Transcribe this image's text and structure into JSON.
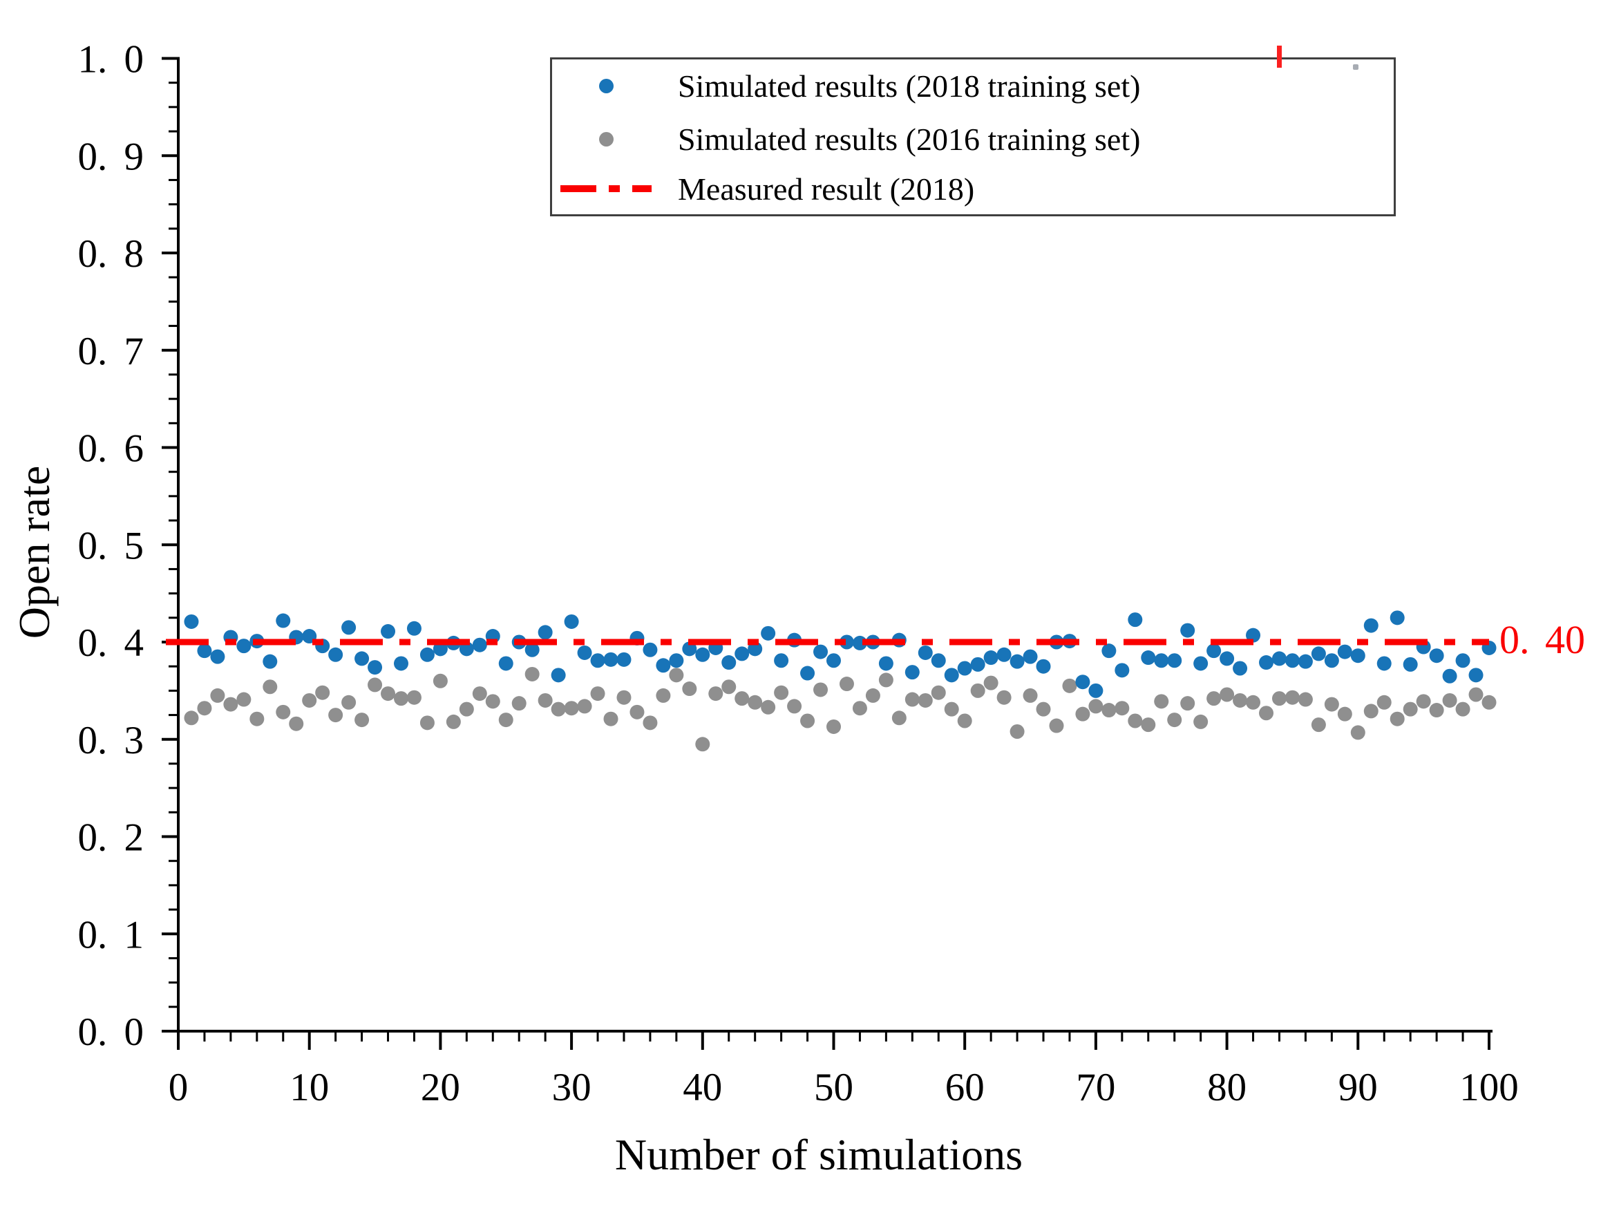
{
  "chart_data": {
    "type": "scatter",
    "title": "",
    "xlabel": "Number of simulations",
    "ylabel": "Open rate",
    "xlim": [
      0,
      100
    ],
    "ylim": [
      0.0,
      1.0
    ],
    "grid": "off",
    "legend_position": "inside-top-center",
    "x_tick_labels": [
      "0",
      "10",
      "20",
      "30",
      "40",
      "50",
      "60",
      "70",
      "80",
      "90",
      "100"
    ],
    "x_major_ticks": [
      0,
      10,
      20,
      30,
      40,
      50,
      60,
      70,
      80,
      90,
      100
    ],
    "x_minor_step": 2,
    "y_tick_labels": [
      "0. 0",
      "0. 1",
      "0. 2",
      "0. 3",
      "0. 4",
      "0. 5",
      "0. 6",
      "0. 7",
      "0. 8",
      "0. 9",
      "1. 0"
    ],
    "y_major_ticks": [
      0.0,
      0.1,
      0.2,
      0.3,
      0.4,
      0.5,
      0.6,
      0.7,
      0.8,
      0.9,
      1.0
    ],
    "y_minor_step": 0.025,
    "x": [
      1,
      2,
      3,
      4,
      5,
      6,
      7,
      8,
      9,
      10,
      11,
      12,
      13,
      14,
      15,
      16,
      17,
      18,
      19,
      20,
      21,
      22,
      23,
      24,
      25,
      26,
      27,
      28,
      29,
      30,
      31,
      32,
      33,
      34,
      35,
      36,
      37,
      38,
      39,
      40,
      41,
      42,
      43,
      44,
      45,
      46,
      47,
      48,
      49,
      50,
      51,
      52,
      53,
      54,
      55,
      56,
      57,
      58,
      59,
      60,
      61,
      62,
      63,
      64,
      65,
      66,
      67,
      68,
      69,
      70,
      71,
      72,
      73,
      74,
      75,
      76,
      77,
      78,
      79,
      80,
      81,
      82,
      83,
      84,
      85,
      86,
      87,
      88,
      89,
      90,
      91,
      92,
      93,
      94,
      95,
      96,
      97,
      98,
      99,
      100
    ],
    "series": [
      {
        "name": "Simulated results (2018 training set)",
        "color": "#1874b8",
        "marker": "circle",
        "values": [
          0.421,
          0.391,
          0.385,
          0.405,
          0.396,
          0.401,
          0.38,
          0.422,
          0.405,
          0.406,
          0.396,
          0.387,
          0.415,
          0.383,
          0.374,
          0.411,
          0.378,
          0.414,
          0.387,
          0.393,
          0.399,
          0.393,
          0.397,
          0.406,
          0.378,
          0.4,
          0.392,
          0.41,
          0.366,
          0.421,
          0.389,
          0.381,
          0.382,
          0.382,
          0.404,
          0.392,
          0.376,
          0.381,
          0.393,
          0.387,
          0.394,
          0.379,
          0.388,
          0.393,
          0.409,
          0.381,
          0.402,
          0.368,
          0.39,
          0.381,
          0.4,
          0.399,
          0.4,
          0.378,
          0.402,
          0.369,
          0.389,
          0.381,
          0.366,
          0.373,
          0.377,
          0.384,
          0.387,
          0.38,
          0.385,
          0.375,
          0.4,
          0.401,
          0.359,
          0.35,
          0.391,
          0.371,
          0.423,
          0.384,
          0.381,
          0.381,
          0.412,
          0.378,
          0.391,
          0.383,
          0.373,
          0.407,
          0.379,
          0.383,
          0.381,
          0.38,
          0.388,
          0.381,
          0.39,
          0.386,
          0.417,
          0.378,
          0.425,
          0.377,
          0.395,
          0.386,
          0.365,
          0.381,
          0.366,
          0.394
        ]
      },
      {
        "name": "Simulated results (2016 training set)",
        "color": "#8f8f8f",
        "marker": "circle",
        "values": [
          0.322,
          0.332,
          0.345,
          0.336,
          0.341,
          0.321,
          0.354,
          0.328,
          0.316,
          0.34,
          0.348,
          0.325,
          0.338,
          0.32,
          0.356,
          0.347,
          0.342,
          0.343,
          0.317,
          0.36,
          0.318,
          0.331,
          0.347,
          0.339,
          0.32,
          0.337,
          0.367,
          0.34,
          0.331,
          0.332,
          0.334,
          0.347,
          0.321,
          0.343,
          0.328,
          0.317,
          0.345,
          0.366,
          0.352,
          0.295,
          0.347,
          0.354,
          0.342,
          0.338,
          0.333,
          0.348,
          0.334,
          0.319,
          0.351,
          0.313,
          0.357,
          0.332,
          0.345,
          0.361,
          0.322,
          0.341,
          0.34,
          0.348,
          0.331,
          0.319,
          0.35,
          0.358,
          0.343,
          0.308,
          0.345,
          0.331,
          0.314,
          0.355,
          0.326,
          0.334,
          0.33,
          0.332,
          0.319,
          0.315,
          0.339,
          0.32,
          0.337,
          0.318,
          0.342,
          0.346,
          0.34,
          0.338,
          0.327,
          0.342,
          0.343,
          0.341,
          0.315,
          0.336,
          0.326,
          0.307,
          0.329,
          0.338,
          0.321,
          0.331,
          0.339,
          0.33,
          0.34,
          0.331,
          0.346,
          0.338
        ]
      }
    ],
    "reference_line": {
      "name": "Measured result (2018)",
      "value": 0.4,
      "style": "dash-dot",
      "color": "#fa0000",
      "label": "0. 40"
    }
  }
}
